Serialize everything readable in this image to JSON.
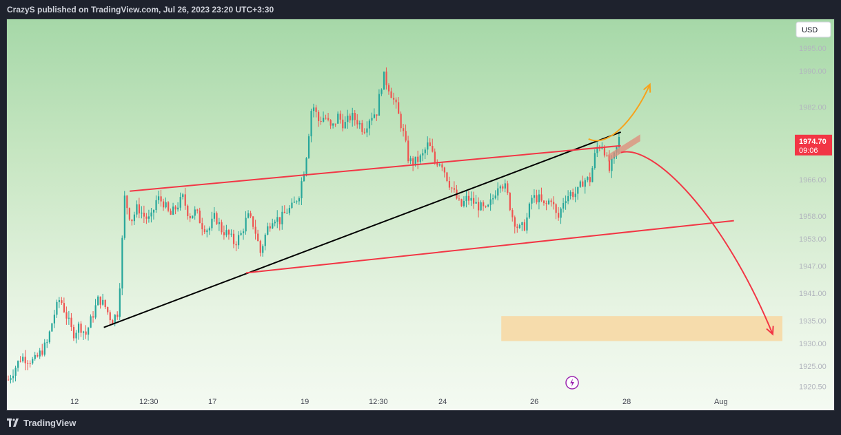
{
  "header": {
    "text": "CrazyS published on TradingView.com, Jul 26, 2023 23:20 UTC+3:30"
  },
  "footer": {
    "brand": "TradingView"
  },
  "colors": {
    "bull": "#26a69a",
    "bear": "#ef5350",
    "trend_black": "#000000",
    "channel_red": "#f23645",
    "scenario_orange": "#f7a21b",
    "price_tag": "#f23645",
    "target_zone": "#f7d9a5"
  },
  "chart_data": {
    "type": "candlestick",
    "currency": "USD",
    "y_ticks": [
      "1995.00",
      "1990.00",
      "1982.00",
      "1966.00",
      "1958.00",
      "1953.00",
      "1947.00",
      "1941.00",
      "1935.00",
      "1930.00",
      "1925.00",
      "1920.50"
    ],
    "y_tick_values": [
      1995,
      1990,
      1982,
      1966,
      1958,
      1953,
      1947,
      1941,
      1935,
      1930,
      1925,
      1920.5
    ],
    "x_ticks": [
      "12",
      "12:30",
      "17",
      "19",
      "12:30",
      "24",
      "26",
      "28",
      "Aug"
    ],
    "last_price": "1974.70",
    "countdown": "09:06",
    "price_path": [
      [
        0,
        1922
      ],
      [
        4,
        1927
      ],
      [
        8,
        1926
      ],
      [
        12,
        1930
      ],
      [
        14,
        1936
      ],
      [
        16,
        1940
      ],
      [
        18,
        1936
      ],
      [
        20,
        1932
      ],
      [
        22,
        1934
      ],
      [
        24,
        1932
      ],
      [
        26,
        1936
      ],
      [
        28,
        1940
      ],
      [
        30,
        1938
      ],
      [
        32,
        1935
      ],
      [
        34,
        1937
      ],
      [
        36,
        1962
      ],
      [
        38,
        1957
      ],
      [
        40,
        1960
      ],
      [
        42,
        1958
      ],
      [
        44,
        1957
      ],
      [
        46,
        1962
      ],
      [
        48,
        1961
      ],
      [
        50,
        1958
      ],
      [
        52,
        1960
      ],
      [
        54,
        1962
      ],
      [
        56,
        1958
      ],
      [
        58,
        1959
      ],
      [
        60,
        1956
      ],
      [
        62,
        1955
      ],
      [
        64,
        1958
      ],
      [
        66,
        1955
      ],
      [
        68,
        1954
      ],
      [
        70,
        1952
      ],
      [
        72,
        1954
      ],
      [
        74,
        1958
      ],
      [
        76,
        1956
      ],
      [
        78,
        1950
      ],
      [
        80,
        1955
      ],
      [
        82,
        1958
      ],
      [
        84,
        1957
      ],
      [
        86,
        1959
      ],
      [
        88,
        1960
      ],
      [
        90,
        1963
      ],
      [
        92,
        1970
      ],
      [
        94,
        1983
      ],
      [
        96,
        1979
      ],
      [
        98,
        1980
      ],
      [
        100,
        1977
      ],
      [
        102,
        1980
      ],
      [
        104,
        1978
      ],
      [
        106,
        1980
      ],
      [
        108,
        1979
      ],
      [
        110,
        1977
      ],
      [
        112,
        1980
      ],
      [
        114,
        1981
      ],
      [
        116,
        1989
      ],
      [
        118,
        1986
      ],
      [
        120,
        1982
      ],
      [
        122,
        1977
      ],
      [
        124,
        1970
      ],
      [
        126,
        1970
      ],
      [
        128,
        1971
      ],
      [
        130,
        1974
      ],
      [
        132,
        1970
      ],
      [
        134,
        1970
      ],
      [
        136,
        1966
      ],
      [
        138,
        1963
      ],
      [
        140,
        1960
      ],
      [
        142,
        1962
      ],
      [
        144,
        1961
      ],
      [
        146,
        1960
      ],
      [
        148,
        1959
      ],
      [
        150,
        1962
      ],
      [
        152,
        1966
      ],
      [
        154,
        1964
      ],
      [
        156,
        1958
      ],
      [
        158,
        1955
      ],
      [
        160,
        1956
      ],
      [
        162,
        1962
      ],
      [
        164,
        1962
      ],
      [
        166,
        1960
      ],
      [
        168,
        1962
      ],
      [
        170,
        1957
      ],
      [
        172,
        1962
      ],
      [
        174,
        1963
      ],
      [
        176,
        1963
      ],
      [
        178,
        1966
      ],
      [
        180,
        1966
      ],
      [
        182,
        1973
      ],
      [
        184,
        1974
      ],
      [
        186,
        1968
      ],
      [
        188,
        1972
      ],
      [
        189,
        1975
      ]
    ],
    "x_range": [
      0,
      240
    ],
    "y_range": [
      1918,
      1998
    ],
    "annotations": {
      "ascending_trendline": [
        [
          30,
          1933.5
        ],
        [
          190,
          1976.5
        ]
      ],
      "channel_upper": [
        [
          38,
          1963.5
        ],
        [
          190,
          1973.5
        ]
      ],
      "channel_lower": [
        [
          74,
          1945.5
        ],
        [
          225,
          1957
        ]
      ],
      "resistance_box": [
        [
          186,
          1971.5
        ],
        [
          196,
          1976
        ]
      ],
      "bull_arrow": [
        [
          180,
          1975
        ],
        [
          186,
          1973
        ],
        [
          194,
          1979
        ],
        [
          199,
          1987
        ]
      ],
      "bear_arrow": [
        [
          190,
          1972
        ],
        [
          200,
          1974
        ],
        [
          222,
          1958
        ],
        [
          237,
          1932
        ]
      ],
      "target_zone": [
        [
          153,
          1930.5
        ],
        [
          240,
          1936
        ]
      ]
    }
  }
}
